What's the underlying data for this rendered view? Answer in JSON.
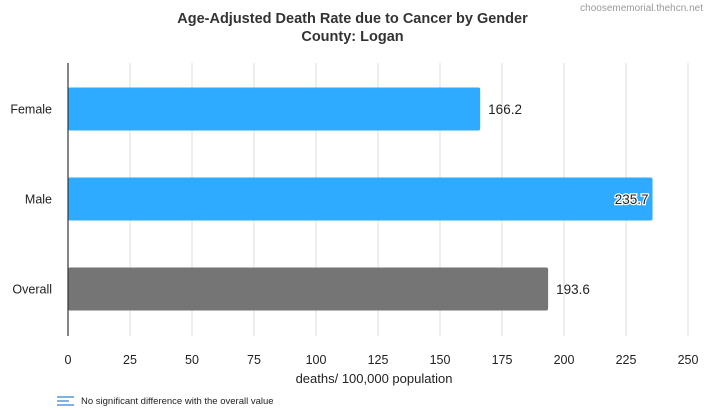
{
  "watermark": "choosememorial.thehcn.net",
  "chart_data": {
    "type": "bar",
    "orientation": "horizontal",
    "title": "Age-Adjusted Death Rate due to Cancer by Gender",
    "subtitle": "County: Logan",
    "categories": [
      "Female",
      "Male",
      "Overall"
    ],
    "values": [
      166.2,
      235.7,
      193.6
    ],
    "value_labels": [
      "166.2",
      "235.7",
      "193.6"
    ],
    "bar_colors": [
      "#2eaaff",
      "#2eaaff",
      "#757575"
    ],
    "xlabel": "deaths/ 100,000 population",
    "ylabel": "",
    "xlim": [
      0,
      250
    ],
    "xticks": [
      0,
      25,
      50,
      75,
      100,
      125,
      150,
      175,
      200,
      225,
      250
    ],
    "grid": true,
    "legend": {
      "position": "bottom-left",
      "entries": [
        "No significant difference with the overall value"
      ]
    }
  }
}
